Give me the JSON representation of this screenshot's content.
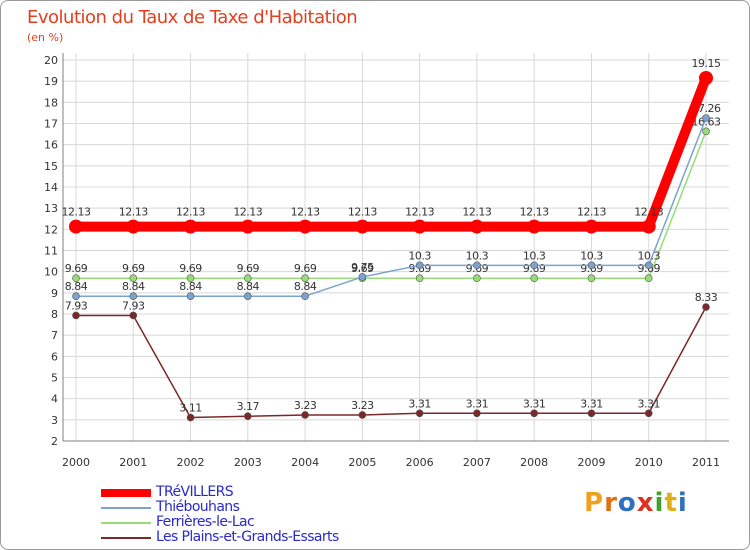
{
  "header": {
    "title": "Evolution du Taux de Taxe d'Habitation",
    "unit": "(en %)"
  },
  "logo": {
    "letters": [
      "P",
      "r",
      "o",
      "x",
      "i",
      "t",
      "i"
    ],
    "colors": [
      "#f0a020",
      "#e07010",
      "#3070c0",
      "#e03020",
      "#40a030",
      "#e0b010",
      "#3070c0"
    ]
  },
  "chart_data": {
    "type": "line",
    "title": "Evolution du Taux de Taxe d'Habitation",
    "ylabel": "(en %)",
    "xlabel": "",
    "ylim": [
      2,
      20
    ],
    "yticks": [
      "2",
      "3",
      "4",
      "5",
      "6",
      "7",
      "8",
      "9",
      "10",
      "11",
      "12",
      "13",
      "14",
      "15",
      "16",
      "17",
      "18",
      "19",
      "20"
    ],
    "categories": [
      "2000",
      "2001",
      "2002",
      "2003",
      "2004",
      "2005",
      "2006",
      "2007",
      "2008",
      "2009",
      "2010",
      "2011"
    ],
    "series": [
      {
        "name": "TRéVILLERS",
        "color": "#ff0000",
        "values": [
          12.13,
          12.13,
          12.13,
          12.13,
          12.13,
          12.13,
          12.13,
          12.13,
          12.13,
          12.13,
          12.13,
          19.15
        ],
        "labels": [
          "12.13",
          "12.13",
          "12.13",
          "12.13",
          "12.13",
          "12.13",
          "12.13",
          "12.13",
          "12.13",
          "12.13",
          "12.13",
          "19.15"
        ]
      },
      {
        "name": "Thiébouhans",
        "color": "#7ba3cd",
        "values": [
          8.84,
          8.84,
          8.84,
          8.84,
          8.84,
          9.75,
          10.3,
          10.3,
          10.3,
          10.3,
          10.3,
          17.26
        ],
        "labels": [
          "8.84",
          "8.84",
          "8.84",
          "8.84",
          "8.84",
          "9.75",
          "10.3",
          "10.3",
          "10.3",
          "10.3",
          "10.3",
          "17.26"
        ]
      },
      {
        "name": "Ferrières-le-Lac",
        "color": "#98dc78",
        "values": [
          9.69,
          9.69,
          9.69,
          9.69,
          9.69,
          9.69,
          9.69,
          9.69,
          9.69,
          9.69,
          9.69,
          16.63
        ],
        "labels": [
          "9.69",
          "9.69",
          "9.69",
          "9.69",
          "9.69",
          "9.69",
          "9.69",
          "9.69",
          "9.69",
          "9.69",
          "9.69",
          "16.63"
        ]
      },
      {
        "name": "Les Plains-et-Grands-Essarts",
        "color": "#7a2828",
        "values": [
          7.93,
          7.93,
          3.11,
          3.17,
          3.23,
          3.23,
          3.31,
          3.31,
          3.31,
          3.31,
          3.31,
          8.33
        ],
        "labels": [
          "7.93",
          "7.93",
          "3.11",
          "3.17",
          "3.23",
          "3.23",
          "3.31",
          "3.31",
          "3.31",
          "3.31",
          "3.31",
          "8.33"
        ]
      }
    ]
  }
}
